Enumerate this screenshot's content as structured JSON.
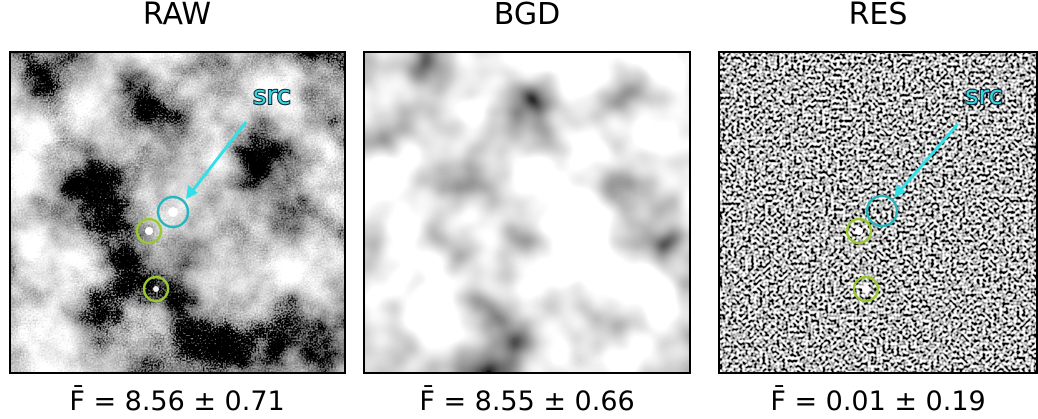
{
  "panels": [
    {
      "title": "RAW",
      "annotation": "src",
      "statistic": "F̄ = 8.56 ± 0.71"
    },
    {
      "title": "BGD",
      "statistic": "F̄ = 8.55 ± 0.66"
    },
    {
      "title": "RES",
      "annotation": "src",
      "statistic": "F̄ = 0.01 ± 0.19"
    }
  ]
}
